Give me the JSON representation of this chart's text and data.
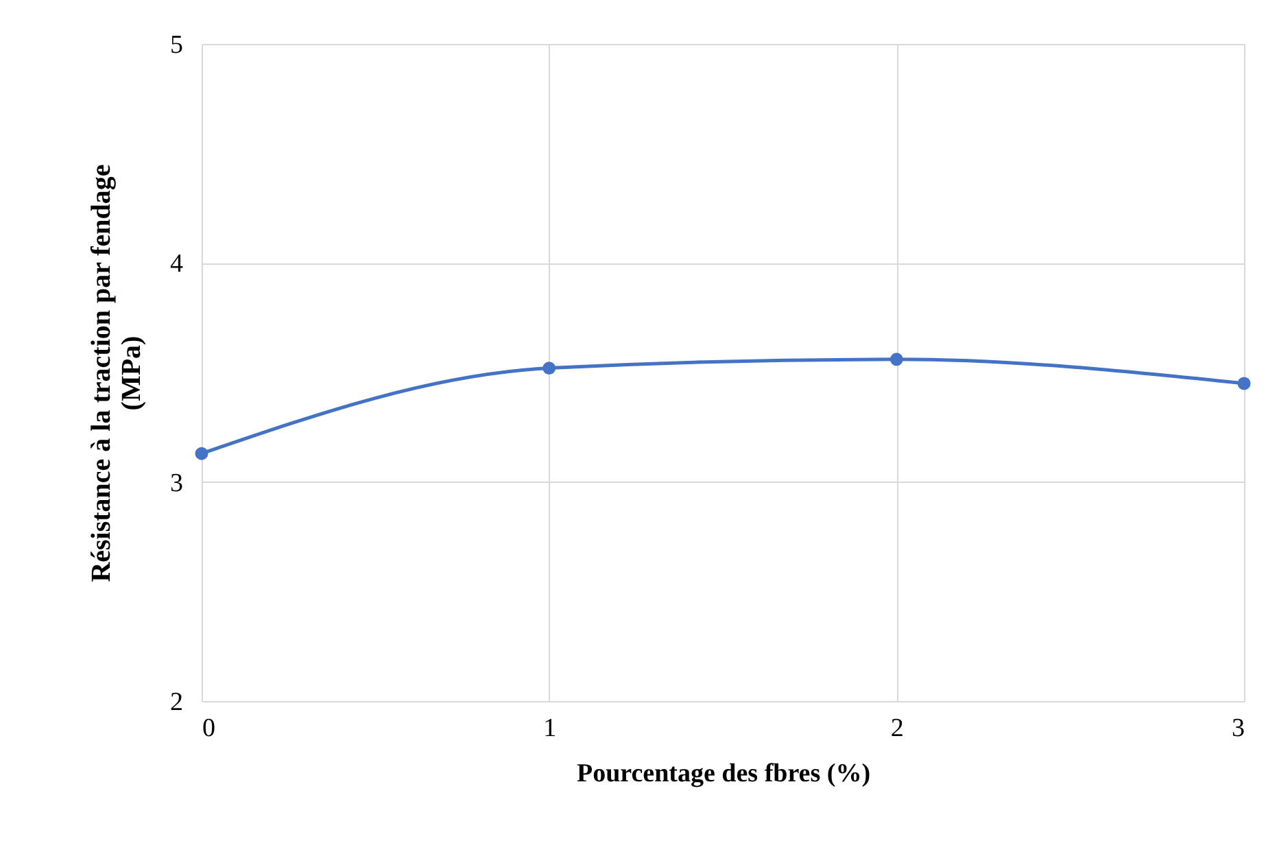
{
  "chart_data": {
    "type": "line",
    "xlabel": "Pourcentage des fbres (%)",
    "ylabel": "Résistance à la traction par fendage (MPa)",
    "x": [
      0,
      1,
      2,
      3
    ],
    "series": [
      {
        "color": "#4472c4",
        "values": [
          3.13,
          3.52,
          3.56,
          3.45
        ]
      }
    ],
    "xlim": [
      0,
      3
    ],
    "xticks": [
      0,
      1,
      2,
      3
    ],
    "ylim": [
      2,
      5
    ],
    "yticks": [
      2,
      3,
      4,
      5
    ],
    "grid": true,
    "marker": "circle",
    "line_style": "solid"
  }
}
